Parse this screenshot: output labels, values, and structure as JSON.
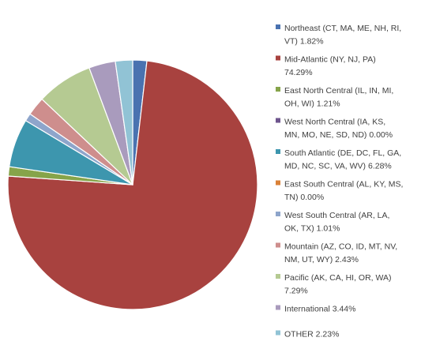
{
  "chart_data": {
    "type": "pie",
    "title": "",
    "legend_position": "right",
    "series": [
      {
        "values": [
          1.82,
          74.29,
          1.21,
          0.0,
          6.28,
          0.0,
          1.01,
          2.43,
          7.29,
          3.44,
          2.23
        ]
      }
    ],
    "categories": [
      "Northeast (CT, MA, ME, NH, RI, VT)",
      "Mid-Atlantic (NY, NJ, PA)",
      "East North Central (IL, IN, MI, OH, WI)",
      "West North Central (IA, KS, MN, MO, NE, SD, ND)",
      "South Atlantic  (DE, DC, FL, GA, MD, NC, SC, VA, WV)",
      "East South Central (AL, KY, MS, TN)",
      "West South Central (AR, LA, OK, TX)",
      "Mountain (AZ, CO, ID, MT, NV, NM, UT, WY)",
      "Pacific (AK, CA, HI, OR, WA)",
      "International",
      "OTHER"
    ],
    "legend_entries": [
      [
        "Northeast (CT, MA, ME, NH, RI,",
        "VT) 1.82%"
      ],
      [
        "Mid-Atlantic (NY, NJ, PA)",
        "74.29%"
      ],
      [
        "East North Central (IL, IN, MI,",
        "OH, WI) 1.21%"
      ],
      [
        "West North Central (IA, KS,",
        "MN, MO, NE, SD, ND) 0.00%"
      ],
      [
        "South Atlantic  (DE, DC, FL, GA,",
        "MD, NC, SC, VA, WV) 6.28%"
      ],
      [
        "East South Central (AL, KY, MS,",
        "TN) 0.00%"
      ],
      [
        "West South Central (AR, LA,",
        "OK, TX) 1.01%"
      ],
      [
        "Mountain (AZ, CO, ID, MT, NV,",
        "NM, UT, WY) 2.43%"
      ],
      [
        "Pacific (AK, CA, HI, OR, WA)",
        "7.29%"
      ],
      [
        "International 3.44%"
      ],
      [
        "OTHER 2.23%"
      ]
    ],
    "colors": [
      "#4a72b0",
      "#a8423f",
      "#86a44a",
      "#6e548d",
      "#3d96ae",
      "#da8137",
      "#8ea5cb",
      "#ce8e8d",
      "#b5ca92",
      "#a99bbd",
      "#91c3d5"
    ]
  }
}
